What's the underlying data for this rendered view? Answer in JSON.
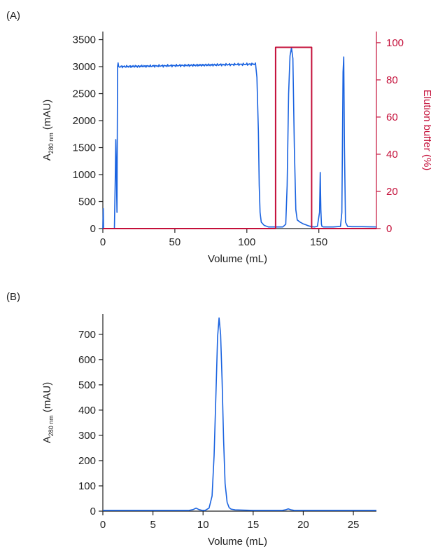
{
  "figure": {
    "panel_a_label": "(A)",
    "panel_b_label": "(B)",
    "colors": {
      "trace": "#1a63e0",
      "elution": "#c4103a",
      "axis": "#222222"
    }
  },
  "chart_data": [
    {
      "type": "line",
      "panel": "(A)",
      "xlabel": "Volume (mL)",
      "ylabel_main": "A",
      "ylabel_sub": "280 nm",
      "ylabel_unit": "(mAU)",
      "y2label": "Elution buffer (%)",
      "xlim": [
        0,
        190
      ],
      "ylim": [
        0,
        3650
      ],
      "y2lim": [
        0,
        106
      ],
      "xticks": [
        0,
        50,
        100,
        150
      ],
      "yticks": [
        0,
        500,
        1000,
        1500,
        2000,
        2500,
        3000,
        3500
      ],
      "y2ticks": [
        0,
        20,
        40,
        60,
        80,
        100
      ],
      "grid": false,
      "series": [
        {
          "axis": "left",
          "color": "#1a63e0",
          "x": [
            0,
            0.3,
            0.5,
            0.8,
            1.2,
            8,
            8.6,
            9,
            9.4,
            9.8,
            10.2,
            10.6,
            11,
            11.6,
            12.2,
            13,
            20,
            30,
            40,
            50,
            60,
            70,
            80,
            90,
            100,
            104,
            106,
            107,
            108,
            108.6,
            109.2,
            110,
            112,
            115,
            120,
            125,
            127,
            128,
            129,
            130,
            131,
            132,
            133,
            134,
            135,
            137,
            139,
            141,
            143,
            145,
            147,
            149,
            150.5,
            151,
            151.4,
            151.8,
            152.2,
            153,
            156,
            160,
            165,
            166,
            166.8,
            167.3,
            167.8,
            168.5,
            170,
            173,
            180,
            190
          ],
          "y": [
            0,
            370,
            0,
            0,
            0,
            0,
            900,
            1650,
            1000,
            300,
            3000,
            3070,
            3000,
            2990,
            3000,
            3005,
            3025,
            3020,
            3030,
            3030,
            3035,
            3040,
            3045,
            3045,
            3040,
            3050,
            3050,
            2800,
            1800,
            800,
            300,
            120,
            60,
            30,
            30,
            30,
            80,
            800,
            2500,
            3200,
            3350,
            3150,
            1500,
            350,
            160,
            120,
            90,
            70,
            50,
            35,
            30,
            40,
            300,
            1040,
            350,
            80,
            40,
            30,
            30,
            30,
            40,
            300,
            2900,
            3180,
            1500,
            120,
            40,
            35,
            35,
            30
          ]
        },
        {
          "axis": "right",
          "color": "#c4103a",
          "x": [
            0,
            120,
            120,
            145,
            145,
            190
          ],
          "y": [
            0,
            0,
            97.5,
            97.5,
            0,
            0
          ]
        }
      ]
    },
    {
      "type": "line",
      "panel": "(B)",
      "xlabel": "Volume (mL)",
      "ylabel_main": "A",
      "ylabel_sub": "280 nm",
      "ylabel_unit": "(mAU)",
      "xlim": [
        0,
        27.3
      ],
      "ylim": [
        0,
        780
      ],
      "xticks": [
        0,
        5,
        10,
        15,
        20,
        25
      ],
      "yticks": [
        0,
        100,
        200,
        300,
        400,
        500,
        600,
        700
      ],
      "grid": false,
      "series": [
        {
          "axis": "left",
          "color": "#1a63e0",
          "x": [
            0,
            8.6,
            9.0,
            9.3,
            9.6,
            9.9,
            10.2,
            10.6,
            10.9,
            11.1,
            11.3,
            11.45,
            11.6,
            11.75,
            11.9,
            12.05,
            12.2,
            12.4,
            12.6,
            12.8,
            13.2,
            14,
            15,
            16,
            17,
            17.9,
            18.2,
            18.5,
            18.8,
            19.1,
            20,
            22,
            25,
            27.3
          ],
          "y": [
            3,
            3,
            6,
            12,
            6,
            3,
            3,
            12,
            60,
            220,
            480,
            690,
            765,
            700,
            520,
            280,
            110,
            35,
            14,
            8,
            5,
            4,
            3,
            3,
            3,
            3,
            5,
            9,
            5,
            3,
            3,
            3,
            3,
            3
          ]
        }
      ]
    }
  ]
}
